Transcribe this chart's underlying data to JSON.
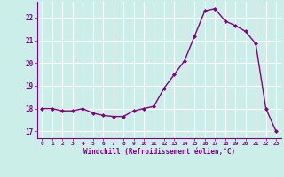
{
  "x": [
    0,
    1,
    2,
    3,
    4,
    5,
    6,
    7,
    8,
    9,
    10,
    11,
    12,
    13,
    14,
    15,
    16,
    17,
    18,
    19,
    20,
    21,
    22,
    23
  ],
  "y": [
    18.0,
    18.0,
    17.9,
    17.9,
    18.0,
    17.8,
    17.7,
    17.65,
    17.65,
    17.9,
    18.0,
    18.1,
    18.9,
    19.5,
    20.1,
    21.2,
    22.3,
    22.4,
    21.85,
    21.65,
    21.4,
    20.85,
    18.0,
    17.0
  ],
  "line_color": "#800080",
  "marker": "D",
  "marker_size": 2.0,
  "bg_color": "#cceee8",
  "grid_color": "#ffffff",
  "xlabel": "Windchill (Refroidissement éolien,°C)",
  "xlabel_color": "#800080",
  "tick_color": "#800080",
  "ylim": [
    16.7,
    22.7
  ],
  "yticks": [
    17,
    18,
    19,
    20,
    21,
    22
  ],
  "xticks": [
    0,
    1,
    2,
    3,
    4,
    5,
    6,
    7,
    8,
    9,
    10,
    11,
    12,
    13,
    14,
    15,
    16,
    17,
    18,
    19,
    20,
    21,
    22,
    23
  ],
  "xlim": [
    -0.5,
    23.5
  ],
  "linewidth": 1.0
}
